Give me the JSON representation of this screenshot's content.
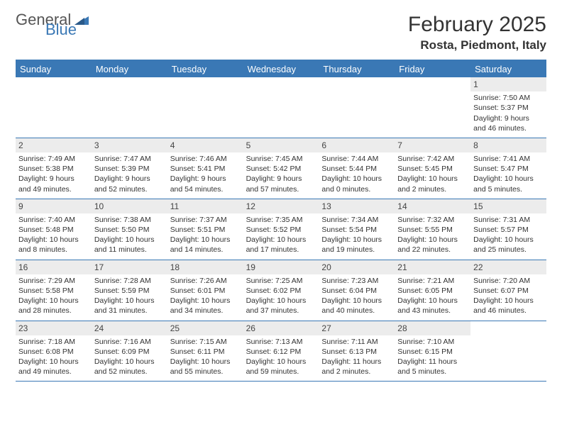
{
  "logo": {
    "part1": "General",
    "part2": "Blue"
  },
  "title": "February 2025",
  "location": "Rosta, Piedmont, Italy",
  "colors": {
    "header_bg": "#3a78b5",
    "daynum_bg": "#ececec",
    "text": "#333333",
    "border": "#3a78b5"
  },
  "day_names": [
    "Sunday",
    "Monday",
    "Tuesday",
    "Wednesday",
    "Thursday",
    "Friday",
    "Saturday"
  ],
  "weeks": [
    [
      null,
      null,
      null,
      null,
      null,
      null,
      {
        "n": "1",
        "sr": "Sunrise: 7:50 AM",
        "ss": "Sunset: 5:37 PM",
        "dl": "Daylight: 9 hours and 46 minutes."
      }
    ],
    [
      {
        "n": "2",
        "sr": "Sunrise: 7:49 AM",
        "ss": "Sunset: 5:38 PM",
        "dl": "Daylight: 9 hours and 49 minutes."
      },
      {
        "n": "3",
        "sr": "Sunrise: 7:47 AM",
        "ss": "Sunset: 5:39 PM",
        "dl": "Daylight: 9 hours and 52 minutes."
      },
      {
        "n": "4",
        "sr": "Sunrise: 7:46 AM",
        "ss": "Sunset: 5:41 PM",
        "dl": "Daylight: 9 hours and 54 minutes."
      },
      {
        "n": "5",
        "sr": "Sunrise: 7:45 AM",
        "ss": "Sunset: 5:42 PM",
        "dl": "Daylight: 9 hours and 57 minutes."
      },
      {
        "n": "6",
        "sr": "Sunrise: 7:44 AM",
        "ss": "Sunset: 5:44 PM",
        "dl": "Daylight: 10 hours and 0 minutes."
      },
      {
        "n": "7",
        "sr": "Sunrise: 7:42 AM",
        "ss": "Sunset: 5:45 PM",
        "dl": "Daylight: 10 hours and 2 minutes."
      },
      {
        "n": "8",
        "sr": "Sunrise: 7:41 AM",
        "ss": "Sunset: 5:47 PM",
        "dl": "Daylight: 10 hours and 5 minutes."
      }
    ],
    [
      {
        "n": "9",
        "sr": "Sunrise: 7:40 AM",
        "ss": "Sunset: 5:48 PM",
        "dl": "Daylight: 10 hours and 8 minutes."
      },
      {
        "n": "10",
        "sr": "Sunrise: 7:38 AM",
        "ss": "Sunset: 5:50 PM",
        "dl": "Daylight: 10 hours and 11 minutes."
      },
      {
        "n": "11",
        "sr": "Sunrise: 7:37 AM",
        "ss": "Sunset: 5:51 PM",
        "dl": "Daylight: 10 hours and 14 minutes."
      },
      {
        "n": "12",
        "sr": "Sunrise: 7:35 AM",
        "ss": "Sunset: 5:52 PM",
        "dl": "Daylight: 10 hours and 17 minutes."
      },
      {
        "n": "13",
        "sr": "Sunrise: 7:34 AM",
        "ss": "Sunset: 5:54 PM",
        "dl": "Daylight: 10 hours and 19 minutes."
      },
      {
        "n": "14",
        "sr": "Sunrise: 7:32 AM",
        "ss": "Sunset: 5:55 PM",
        "dl": "Daylight: 10 hours and 22 minutes."
      },
      {
        "n": "15",
        "sr": "Sunrise: 7:31 AM",
        "ss": "Sunset: 5:57 PM",
        "dl": "Daylight: 10 hours and 25 minutes."
      }
    ],
    [
      {
        "n": "16",
        "sr": "Sunrise: 7:29 AM",
        "ss": "Sunset: 5:58 PM",
        "dl": "Daylight: 10 hours and 28 minutes."
      },
      {
        "n": "17",
        "sr": "Sunrise: 7:28 AM",
        "ss": "Sunset: 5:59 PM",
        "dl": "Daylight: 10 hours and 31 minutes."
      },
      {
        "n": "18",
        "sr": "Sunrise: 7:26 AM",
        "ss": "Sunset: 6:01 PM",
        "dl": "Daylight: 10 hours and 34 minutes."
      },
      {
        "n": "19",
        "sr": "Sunrise: 7:25 AM",
        "ss": "Sunset: 6:02 PM",
        "dl": "Daylight: 10 hours and 37 minutes."
      },
      {
        "n": "20",
        "sr": "Sunrise: 7:23 AM",
        "ss": "Sunset: 6:04 PM",
        "dl": "Daylight: 10 hours and 40 minutes."
      },
      {
        "n": "21",
        "sr": "Sunrise: 7:21 AM",
        "ss": "Sunset: 6:05 PM",
        "dl": "Daylight: 10 hours and 43 minutes."
      },
      {
        "n": "22",
        "sr": "Sunrise: 7:20 AM",
        "ss": "Sunset: 6:07 PM",
        "dl": "Daylight: 10 hours and 46 minutes."
      }
    ],
    [
      {
        "n": "23",
        "sr": "Sunrise: 7:18 AM",
        "ss": "Sunset: 6:08 PM",
        "dl": "Daylight: 10 hours and 49 minutes."
      },
      {
        "n": "24",
        "sr": "Sunrise: 7:16 AM",
        "ss": "Sunset: 6:09 PM",
        "dl": "Daylight: 10 hours and 52 minutes."
      },
      {
        "n": "25",
        "sr": "Sunrise: 7:15 AM",
        "ss": "Sunset: 6:11 PM",
        "dl": "Daylight: 10 hours and 55 minutes."
      },
      {
        "n": "26",
        "sr": "Sunrise: 7:13 AM",
        "ss": "Sunset: 6:12 PM",
        "dl": "Daylight: 10 hours and 59 minutes."
      },
      {
        "n": "27",
        "sr": "Sunrise: 7:11 AM",
        "ss": "Sunset: 6:13 PM",
        "dl": "Daylight: 11 hours and 2 minutes."
      },
      {
        "n": "28",
        "sr": "Sunrise: 7:10 AM",
        "ss": "Sunset: 6:15 PM",
        "dl": "Daylight: 11 hours and 5 minutes."
      },
      null
    ]
  ]
}
